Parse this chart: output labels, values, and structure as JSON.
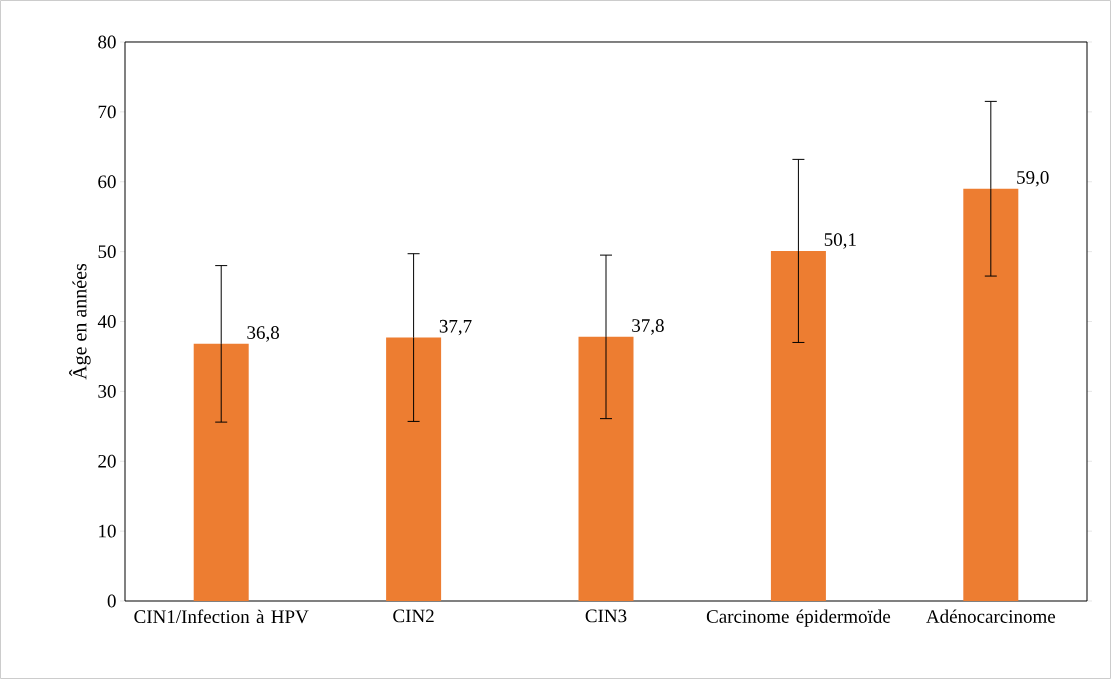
{
  "chart_data": {
    "type": "bar",
    "ylabel": "Âge en années",
    "categories": [
      "CIN1/Infection à HPV",
      "CIN2",
      "CIN3",
      "Carcinome épidermoïde",
      "Adénocarcinome"
    ],
    "values": [
      36.8,
      37.7,
      37.8,
      50.1,
      59.0
    ],
    "value_labels": [
      "36,8",
      "37,7",
      "37,8",
      "50,1",
      "59,0"
    ],
    "errors": [
      11.2,
      12.0,
      11.7,
      13.1,
      12.5
    ],
    "color": "#ed7d31",
    "ylim": [
      0,
      80
    ],
    "yticks": [
      0,
      10,
      20,
      30,
      40,
      50,
      60,
      70,
      80
    ]
  }
}
